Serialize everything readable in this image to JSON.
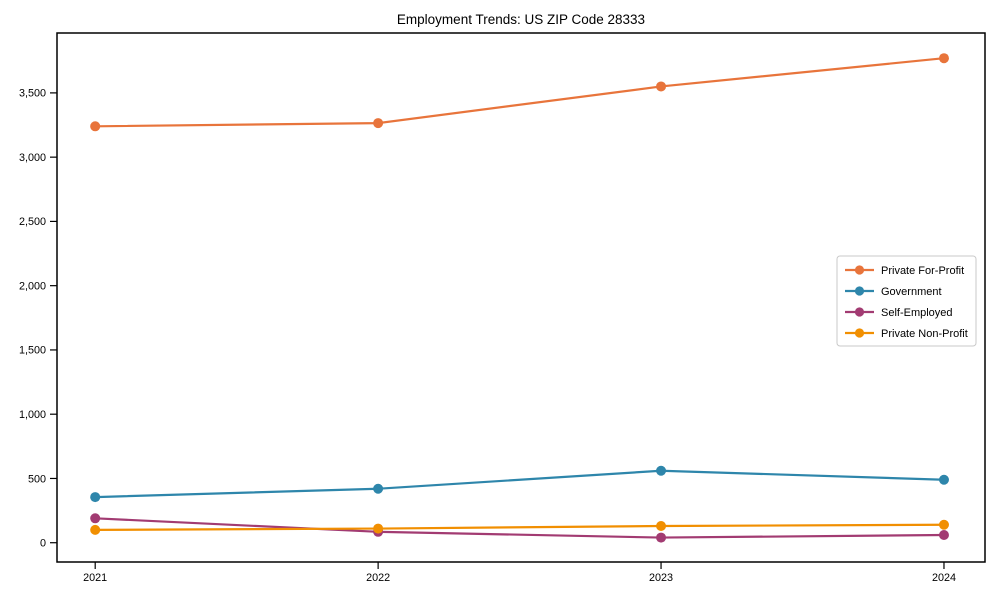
{
  "page": {
    "title": "Employment Trends: US ZIP Code 28333"
  },
  "chart_data": {
    "type": "line",
    "title": "Employment Trends: US ZIP Code 28333",
    "x": [
      2021,
      2022,
      2023,
      2024
    ],
    "x_tick_labels": [
      "2021",
      "2022",
      "2023",
      "2024"
    ],
    "series": [
      {
        "name": "Private For-Profit",
        "color": "#E8743B",
        "values": [
          3240,
          3265,
          3550,
          3770
        ]
      },
      {
        "name": "Government",
        "color": "#2E86AB",
        "values": [
          355,
          420,
          560,
          490
        ]
      },
      {
        "name": "Self-Employed",
        "color": "#A23B72",
        "values": [
          190,
          85,
          40,
          60
        ]
      },
      {
        "name": "Private Non-Profit",
        "color": "#F18F01",
        "values": [
          100,
          110,
          130,
          140
        ]
      }
    ],
    "yticks": [
      0,
      500,
      1000,
      1500,
      2000,
      2500,
      3000,
      3500
    ],
    "ytick_labels": [
      "0",
      "500",
      "1,000",
      "1,500",
      "2,000",
      "2,500",
      "3,000",
      "3,500"
    ],
    "xlim": [
      2020.865,
      2024.145
    ],
    "ylim": [
      -150,
      3966
    ],
    "grid": false,
    "marker": "o",
    "legend_position": "center right",
    "legend_border_color": "#c9c9c9",
    "axis_color": "#000000",
    "text_color": "#000000",
    "background": "#ffffff"
  }
}
